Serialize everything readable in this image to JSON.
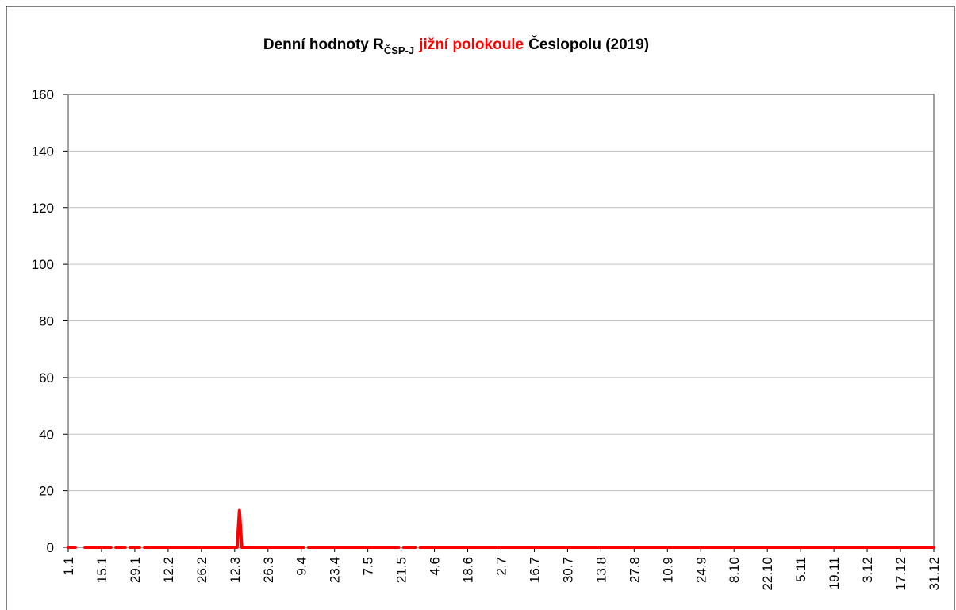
{
  "chart_data": {
    "type": "line",
    "title": [
      "Denní hodnoty R",
      "ČSP-J",
      "jižní polokoule",
      "Česlopolu (2019)"
    ],
    "categories": [
      "1.1",
      null,
      null,
      null,
      null,
      null,
      null,
      null,
      null,
      null,
      null,
      null,
      null,
      null,
      "15.1",
      null,
      null,
      null,
      null,
      null,
      null,
      null,
      null,
      null,
      null,
      null,
      null,
      null,
      "29.1",
      null,
      null,
      null,
      null,
      null,
      null,
      null,
      null,
      null,
      null,
      null,
      null,
      null,
      "12.2",
      null,
      null,
      null,
      null,
      null,
      null,
      null,
      null,
      null,
      null,
      null,
      null,
      null,
      "26.2",
      null,
      null,
      null,
      null,
      null,
      null,
      null,
      null,
      null,
      null,
      null,
      null,
      null,
      "12.3",
      null,
      null,
      null,
      null,
      null,
      null,
      null,
      null,
      null,
      null,
      null,
      null,
      null,
      "26.3",
      null,
      null,
      null,
      null,
      null,
      null,
      null,
      null,
      null,
      null,
      null,
      null,
      null,
      "9.4",
      null,
      null,
      null,
      null,
      null,
      null,
      null,
      null,
      null,
      null,
      null,
      null,
      null,
      "23.4",
      null,
      null,
      null,
      null,
      null,
      null,
      null,
      null,
      null,
      null,
      null,
      null,
      null,
      "7.5",
      null,
      null,
      null,
      null,
      null,
      null,
      null,
      null,
      null,
      null,
      null,
      null,
      null,
      "21.5",
      null,
      null,
      null,
      null,
      null,
      null,
      null,
      null,
      null,
      null,
      null,
      null,
      null,
      "4.6",
      null,
      null,
      null,
      null,
      null,
      null,
      null,
      null,
      null,
      null,
      null,
      null,
      null,
      "18.6",
      null,
      null,
      null,
      null,
      null,
      null,
      null,
      null,
      null,
      null,
      null,
      null,
      null,
      "2.7",
      null,
      null,
      null,
      null,
      null,
      null,
      null,
      null,
      null,
      null,
      null,
      null,
      null,
      "16.7",
      null,
      null,
      null,
      null,
      null,
      null,
      null,
      null,
      null,
      null,
      null,
      null,
      null,
      "30.7",
      null,
      null,
      null,
      null,
      null,
      null,
      null,
      null,
      null,
      null,
      null,
      null,
      null,
      "13.8",
      null,
      null,
      null,
      null,
      null,
      null,
      null,
      null,
      null,
      null,
      null,
      null,
      null,
      "27.8",
      null,
      null,
      null,
      null,
      null,
      null,
      null,
      null,
      null,
      null,
      null,
      null,
      null,
      "10.9",
      null,
      null,
      null,
      null,
      null,
      null,
      null,
      null,
      null,
      null,
      null,
      null,
      null,
      "24.9",
      null,
      null,
      null,
      null,
      null,
      null,
      null,
      null,
      null,
      null,
      null,
      null,
      null,
      "8.10",
      null,
      null,
      null,
      null,
      null,
      null,
      null,
      null,
      null,
      null,
      null,
      null,
      null,
      "22.10",
      null,
      null,
      null,
      null,
      null,
      null,
      null,
      null,
      null,
      null,
      null,
      null,
      null,
      "5.11",
      null,
      null,
      null,
      null,
      null,
      null,
      null,
      null,
      null,
      null,
      null,
      null,
      null,
      "19.11",
      null,
      null,
      null,
      null,
      null,
      null,
      null,
      null,
      null,
      null,
      null,
      null,
      null,
      "3.12",
      null,
      null,
      null,
      null,
      null,
      null,
      null,
      null,
      null,
      null,
      null,
      null,
      null,
      "17.12",
      null,
      null,
      null,
      null,
      null,
      null,
      null,
      null,
      null,
      null,
      null,
      null,
      null,
      "31.12"
    ],
    "values": [
      0,
      0,
      0,
      0,
      null,
      0,
      null,
      0,
      0,
      0,
      0,
      0,
      0,
      0,
      0,
      0,
      0,
      0,
      0,
      null,
      0,
      0,
      0,
      0,
      0,
      null,
      0,
      0,
      0,
      0,
      0,
      null,
      0,
      0,
      0,
      0,
      0,
      0,
      0,
      0,
      0,
      0,
      0,
      0,
      0,
      0,
      0,
      0,
      0,
      0,
      0,
      0,
      0,
      0,
      0,
      0,
      0,
      0,
      0,
      0,
      0,
      0,
      0,
      0,
      0,
      0,
      0,
      0,
      0,
      0,
      0,
      0,
      13,
      0,
      0,
      0,
      0,
      0,
      0,
      0,
      0,
      0,
      0,
      0,
      0,
      0,
      0,
      0,
      0,
      0,
      0,
      0,
      0,
      0,
      0,
      0,
      0,
      0,
      0,
      0,
      null,
      0,
      0,
      0,
      0,
      0,
      0,
      0,
      0,
      0,
      0,
      0,
      0,
      0,
      0,
      0,
      0,
      0,
      0,
      0,
      0,
      0,
      0,
      0,
      0,
      0,
      0,
      0,
      0,
      0,
      0,
      0,
      0,
      0,
      0,
      0,
      0,
      0,
      0,
      0,
      null,
      0,
      0,
      0,
      0,
      0,
      0,
      null,
      0,
      0,
      0,
      0,
      0,
      0,
      0,
      0,
      0,
      0,
      0,
      0,
      0,
      0,
      0,
      0,
      0,
      0,
      0,
      0,
      0,
      0,
      0,
      0,
      0,
      0,
      0,
      0,
      0,
      0,
      0,
      0,
      0,
      0,
      0,
      0,
      0,
      0,
      0,
      0,
      0,
      0,
      0,
      0,
      0,
      0,
      0,
      0,
      0,
      0,
      0,
      0,
      0,
      0,
      0,
      0,
      0,
      0,
      0,
      0,
      0,
      0,
      0,
      0,
      0,
      0,
      0,
      0,
      0,
      0,
      0,
      0,
      0,
      0,
      0,
      0,
      0,
      0,
      0,
      0,
      0,
      0,
      0,
      0,
      0,
      0,
      0,
      0,
      0,
      0,
      0,
      0,
      0,
      0,
      0,
      0,
      0,
      0,
      0,
      0,
      0,
      0,
      0,
      0,
      0,
      0,
      0,
      0,
      0,
      0,
      0,
      0,
      0,
      0,
      0,
      0,
      0,
      0,
      0,
      0,
      0,
      0,
      0,
      0,
      0,
      0,
      0,
      0,
      0,
      0,
      0,
      0,
      0,
      0,
      0,
      0,
      0,
      0,
      0,
      0,
      0,
      0,
      0,
      0,
      0,
      0,
      0,
      0,
      0,
      0,
      0,
      0,
      0,
      0,
      0,
      0,
      0,
      0,
      0,
      0,
      0,
      0,
      0,
      0,
      0,
      0,
      0,
      0,
      0,
      0,
      0,
      0,
      0,
      0,
      0,
      0,
      0,
      0,
      0,
      0,
      0,
      0,
      0,
      0,
      0,
      0,
      0,
      0,
      0,
      0,
      0,
      0,
      0,
      0,
      0,
      0,
      0,
      0,
      0,
      0,
      0,
      0,
      0,
      0,
      0,
      0,
      0,
      0,
      0,
      0,
      0,
      0,
      0,
      0,
      0,
      0,
      0
    ],
    "color": "#ff0000",
    "ylim": [
      0,
      160
    ],
    "yticks": [
      0,
      20,
      40,
      60,
      80,
      100,
      120,
      140,
      160
    ],
    "grid": true
  }
}
